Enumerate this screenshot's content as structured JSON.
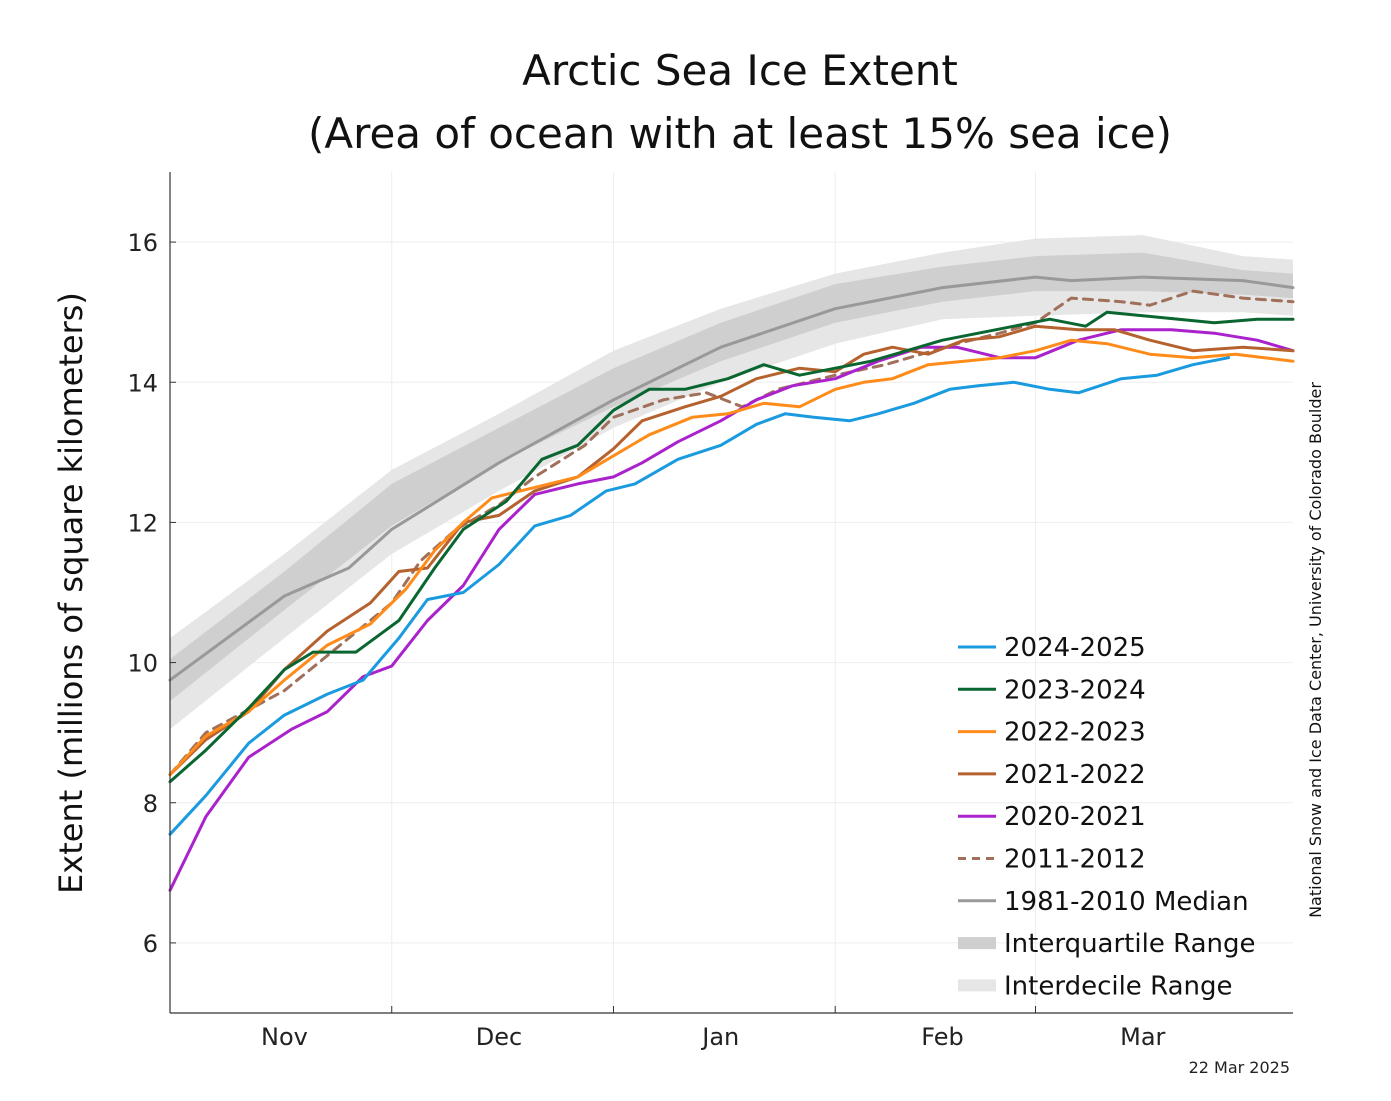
{
  "chart_data": {
    "type": "line",
    "title_line1": "Arctic Sea Ice Extent",
    "title_line2": "(Area of ocean with at least 15% sea ice)",
    "ylabel": "Extent (millions of square kilometers)",
    "xlabel": "",
    "ylim": [
      5,
      17
    ],
    "yticks": [
      6,
      8,
      10,
      12,
      14,
      16
    ],
    "xlim": [
      15,
      172
    ],
    "month_labels": [
      {
        "label": "Nov",
        "x": 31
      },
      {
        "label": "Dec",
        "x": 61
      },
      {
        "label": "Jan",
        "x": 92
      },
      {
        "label": "Feb",
        "x": 123
      },
      {
        "label": "Mar",
        "x": 151
      }
    ],
    "month_boundaries": [
      46,
      77,
      108,
      136
    ],
    "grid": true,
    "legend_position": "lower-right",
    "credit": "National Snow and Ice Data Center, University of Colorado Boulder",
    "date_stamp": "22 Mar 2025",
    "bands": [
      {
        "name": "Interdecile Range",
        "color": "#e6e6e6",
        "x": [
          15,
          31,
          46,
          61,
          77,
          92,
          108,
          123,
          136,
          151,
          165,
          172
        ],
        "lower": [
          9.05,
          10.35,
          11.55,
          12.45,
          13.35,
          14.0,
          14.55,
          14.9,
          14.95,
          15.0,
          15.0,
          14.95
        ],
        "upper": [
          10.35,
          11.55,
          12.75,
          13.55,
          14.45,
          15.05,
          15.55,
          15.85,
          16.05,
          16.1,
          15.8,
          15.75
        ]
      },
      {
        "name": "Interquartile Range",
        "color": "#cfcfcf",
        "x": [
          15,
          31,
          46,
          61,
          77,
          92,
          108,
          123,
          136,
          151,
          165,
          172
        ],
        "lower": [
          9.45,
          10.75,
          11.95,
          12.85,
          13.65,
          14.3,
          14.85,
          15.15,
          15.3,
          15.3,
          15.25,
          15.2
        ],
        "upper": [
          10.05,
          11.3,
          12.55,
          13.35,
          14.2,
          14.85,
          15.4,
          15.65,
          15.8,
          15.85,
          15.6,
          15.55
        ]
      }
    ],
    "series": [
      {
        "name": "1981-2010 Median",
        "color": "#999999",
        "dash": false,
        "width": 3,
        "x": [
          15,
          31,
          40,
          46,
          61,
          77,
          92,
          108,
          123,
          136,
          141,
          151,
          165,
          172
        ],
        "y": [
          9.75,
          10.95,
          11.35,
          11.9,
          12.85,
          13.75,
          14.5,
          15.05,
          15.35,
          15.5,
          15.45,
          15.5,
          15.45,
          15.35
        ]
      },
      {
        "name": "2011-2012",
        "color": "#a0705a",
        "dash": true,
        "width": 3,
        "x": [
          15,
          20,
          31,
          40,
          46,
          50,
          55,
          61,
          66,
          73,
          77,
          84,
          90,
          95,
          100,
          108,
          115,
          120,
          125,
          131,
          136,
          141,
          148,
          152,
          158,
          165,
          172
        ],
        "y": [
          8.4,
          9.0,
          9.6,
          10.35,
          10.85,
          11.45,
          11.9,
          12.25,
          12.65,
          13.1,
          13.5,
          13.75,
          13.85,
          13.65,
          13.9,
          14.1,
          14.25,
          14.4,
          14.55,
          14.7,
          14.85,
          15.2,
          15.15,
          15.1,
          15.3,
          15.2,
          15.15
        ]
      },
      {
        "name": "2020-2021",
        "color": "#aa22cc",
        "dash": false,
        "width": 3,
        "x": [
          15,
          20,
          26,
          32,
          37,
          42,
          46,
          51,
          56,
          61,
          66,
          72,
          77,
          81,
          86,
          92,
          97,
          102,
          108,
          114,
          120,
          125,
          131,
          136,
          142,
          148,
          155,
          161,
          167,
          172
        ],
        "y": [
          6.75,
          7.8,
          8.65,
          9.05,
          9.3,
          9.8,
          9.95,
          10.6,
          11.1,
          11.9,
          12.4,
          12.55,
          12.65,
          12.85,
          13.15,
          13.45,
          13.75,
          13.95,
          14.05,
          14.3,
          14.5,
          14.5,
          14.35,
          14.35,
          14.6,
          14.75,
          14.75,
          14.7,
          14.6,
          14.45
        ]
      },
      {
        "name": "2021-2022",
        "color": "#b5622e",
        "dash": false,
        "width": 3,
        "x": [
          15,
          20,
          26,
          31,
          37,
          43,
          47,
          51,
          56,
          61,
          66,
          72,
          77,
          81,
          87,
          92,
          97,
          103,
          108,
          112,
          116,
          121,
          126,
          131,
          136,
          142,
          147,
          152,
          158,
          165,
          172
        ],
        "y": [
          8.4,
          8.9,
          9.3,
          9.9,
          10.45,
          10.85,
          11.3,
          11.35,
          12.0,
          12.1,
          12.45,
          12.65,
          13.05,
          13.45,
          13.65,
          13.8,
          14.05,
          14.2,
          14.15,
          14.4,
          14.5,
          14.4,
          14.6,
          14.65,
          14.8,
          14.75,
          14.75,
          14.6,
          14.45,
          14.5,
          14.45
        ]
      },
      {
        "name": "2022-2023",
        "color": "#ff8c1a",
        "dash": false,
        "width": 3,
        "x": [
          15,
          20,
          26,
          31,
          37,
          43,
          48,
          52,
          56,
          60,
          66,
          72,
          77,
          82,
          88,
          93,
          98,
          103,
          108,
          112,
          116,
          121,
          126,
          131,
          136,
          141,
          146,
          152,
          158,
          164,
          168,
          172
        ],
        "y": [
          8.4,
          8.95,
          9.3,
          9.75,
          10.25,
          10.55,
          11.05,
          11.6,
          12.0,
          12.35,
          12.5,
          12.65,
          12.95,
          13.25,
          13.5,
          13.55,
          13.7,
          13.65,
          13.9,
          14.0,
          14.05,
          14.25,
          14.3,
          14.35,
          14.45,
          14.6,
          14.55,
          14.4,
          14.35,
          14.4,
          14.35,
          14.3
        ]
      },
      {
        "name": "2023-2024",
        "color": "#0a6630",
        "dash": false,
        "width": 3,
        "x": [
          15,
          20,
          26,
          31,
          35,
          41,
          47,
          52,
          56,
          62,
          67,
          72,
          77,
          82,
          87,
          93,
          98,
          103,
          108,
          113,
          118,
          123,
          128,
          133,
          138,
          143,
          146,
          151,
          156,
          161,
          167,
          172
        ],
        "y": [
          8.3,
          8.75,
          9.35,
          9.9,
          10.15,
          10.15,
          10.6,
          11.35,
          11.9,
          12.3,
          12.9,
          13.1,
          13.6,
          13.9,
          13.9,
          14.05,
          14.25,
          14.1,
          14.2,
          14.3,
          14.45,
          14.6,
          14.7,
          14.8,
          14.9,
          14.8,
          15.0,
          14.95,
          14.9,
          14.85,
          14.9,
          14.9
        ]
      },
      {
        "name": "2024-2025",
        "color": "#1a9bdf",
        "dash": false,
        "width": 3,
        "x": [
          15,
          20,
          26,
          31,
          37,
          42,
          47,
          51,
          56,
          61,
          66,
          71,
          76,
          80,
          86,
          92,
          97,
          101,
          105,
          110,
          114,
          119,
          124,
          128,
          133,
          138,
          142,
          148,
          153,
          158,
          163
        ],
        "y": [
          7.55,
          8.1,
          8.85,
          9.25,
          9.55,
          9.75,
          10.35,
          10.9,
          11.0,
          11.4,
          11.95,
          12.1,
          12.45,
          12.55,
          12.9,
          13.1,
          13.4,
          13.55,
          13.5,
          13.45,
          13.55,
          13.7,
          13.9,
          13.95,
          14.0,
          13.9,
          13.85,
          14.05,
          14.1,
          14.25,
          14.35
        ]
      }
    ],
    "legend": [
      {
        "label": "2024-2025",
        "color": "#1a9bdf",
        "kind": "line"
      },
      {
        "label": "2023-2024",
        "color": "#0a6630",
        "kind": "line"
      },
      {
        "label": "2022-2023",
        "color": "#ff8c1a",
        "kind": "line"
      },
      {
        "label": "2021-2022",
        "color": "#b5622e",
        "kind": "line"
      },
      {
        "label": "2020-2021",
        "color": "#aa22cc",
        "kind": "line"
      },
      {
        "label": "2011-2012",
        "color": "#a0705a",
        "kind": "dash"
      },
      {
        "label": "1981-2010 Median",
        "color": "#999999",
        "kind": "line"
      },
      {
        "label": "Interquartile Range",
        "color": "#cfcfcf",
        "kind": "band"
      },
      {
        "label": "Interdecile Range",
        "color": "#e6e6e6",
        "kind": "band"
      }
    ]
  }
}
